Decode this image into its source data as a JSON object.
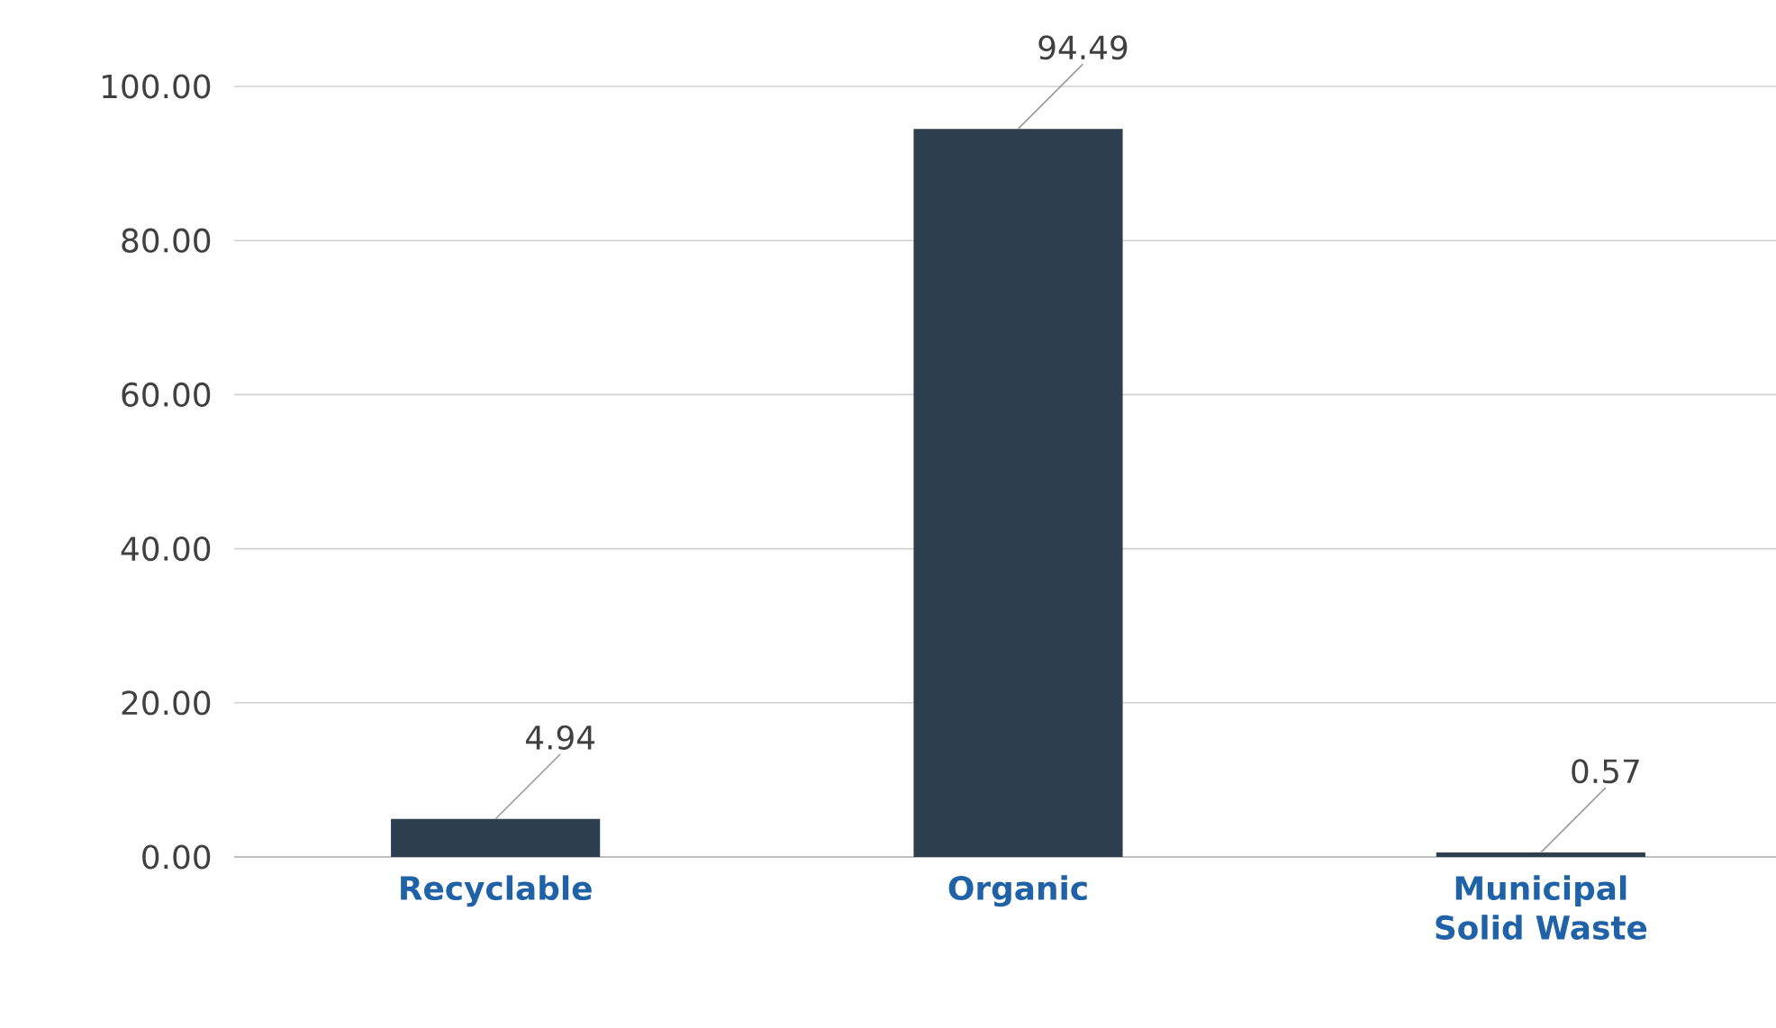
{
  "chart_data": {
    "type": "bar",
    "categories": [
      "Recyclable",
      "Organic",
      "Municipal Solid Waste"
    ],
    "values": [
      4.94,
      94.49,
      0.57
    ],
    "color": "#2d3e4e",
    "ylim": [
      0,
      100
    ],
    "yticks": [
      {
        "value": 0,
        "label": "0.00"
      },
      {
        "value": 20,
        "label": "20.00"
      },
      {
        "value": 40,
        "label": "40.00"
      },
      {
        "value": 60,
        "label": "60.00"
      },
      {
        "value": 80,
        "label": "80.00"
      },
      {
        "value": 100,
        "label": "100.00"
      }
    ],
    "grid": "y",
    "data_labels": true
  }
}
